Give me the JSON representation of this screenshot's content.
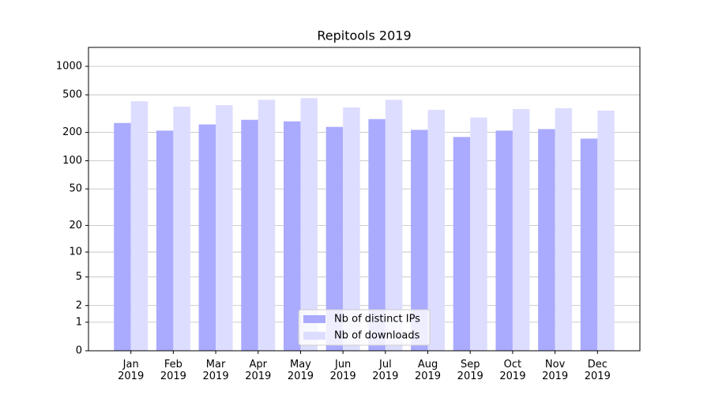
{
  "chart_data": {
    "type": "bar",
    "title": "Repitools 2019",
    "scale": "log1p",
    "grid": true,
    "categories": [
      "Jan\n2019",
      "Feb\n2019",
      "Mar\n2019",
      "Apr\n2019",
      "May\n2019",
      "Jun\n2019",
      "Jul\n2019",
      "Aug\n2019",
      "Sep\n2019",
      "Oct\n2019",
      "Nov\n2019",
      "Dec\n2019"
    ],
    "series": [
      {
        "name": "Nb of distinct IPs",
        "color": "#aaaaff",
        "values": [
          252,
          209,
          243,
          272,
          262,
          229,
          277,
          213,
          179,
          209,
          217,
          172
        ]
      },
      {
        "name": "Nb of downloads",
        "color": "#ddddff",
        "values": [
          428,
          375,
          389,
          443,
          461,
          368,
          443,
          347,
          288,
          354,
          361,
          341
        ]
      }
    ],
    "ylim": [
      0,
      1585
    ],
    "yticks": [
      0,
      1,
      2,
      5,
      10,
      20,
      50,
      100,
      200,
      500,
      1000
    ],
    "legend": "lower center"
  }
}
